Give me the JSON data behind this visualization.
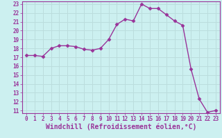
{
  "x": [
    0,
    1,
    2,
    3,
    4,
    5,
    6,
    7,
    8,
    9,
    10,
    11,
    12,
    13,
    14,
    15,
    16,
    17,
    18,
    19,
    20,
    21,
    22,
    23
  ],
  "y": [
    17.2,
    17.2,
    17.1,
    18.0,
    18.3,
    18.3,
    18.2,
    17.9,
    17.8,
    18.0,
    19.0,
    20.7,
    21.3,
    21.1,
    23.0,
    22.5,
    22.5,
    21.8,
    21.1,
    20.6,
    15.7,
    12.3,
    10.8,
    11.0
  ],
  "xlabel": "Windchill (Refroidissement éolien,°C)",
  "ylim_min": 11,
  "ylim_max": 23,
  "xlim_min": 0,
  "xlim_max": 23,
  "yticks": [
    11,
    12,
    13,
    14,
    15,
    16,
    17,
    18,
    19,
    20,
    21,
    22,
    23
  ],
  "xticks": [
    0,
    1,
    2,
    3,
    4,
    5,
    6,
    7,
    8,
    9,
    10,
    11,
    12,
    13,
    14,
    15,
    16,
    17,
    18,
    19,
    20,
    21,
    22,
    23
  ],
  "line_color": "#993399",
  "marker": "D",
  "marker_size": 2.5,
  "bg_color": "#ccf0f0",
  "grid_color": "#bbdddd",
  "tick_label_fontsize": 5.5,
  "xlabel_fontsize": 7,
  "line_width": 1.0
}
